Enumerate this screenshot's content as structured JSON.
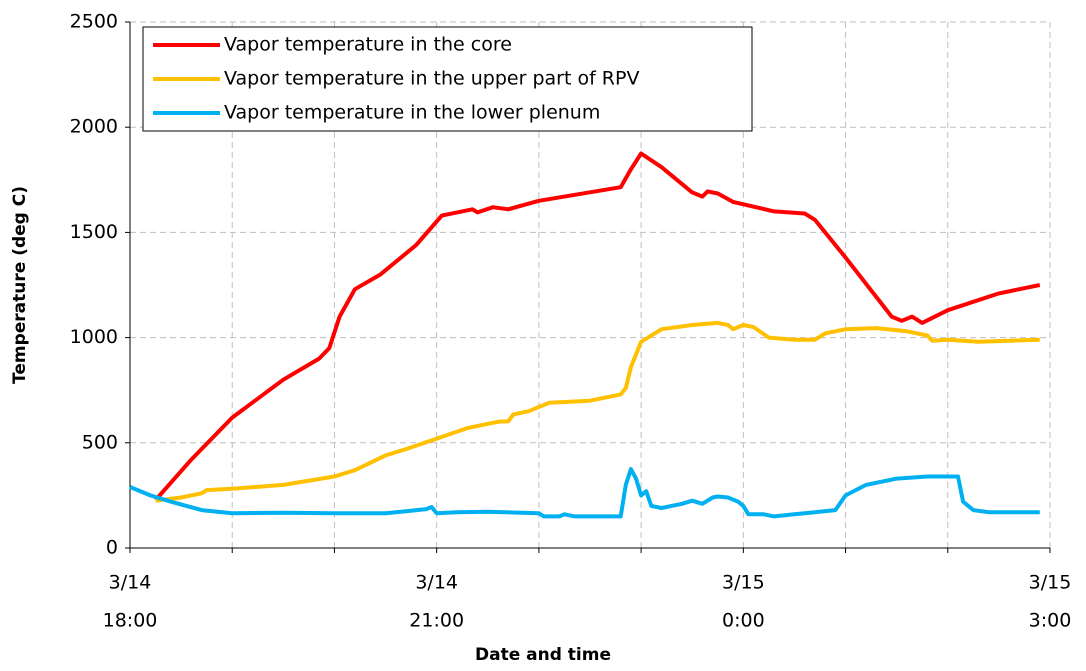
{
  "chart_data": {
    "type": "line",
    "x_label": "Date and time",
    "y_label": "Temperature (deg C)",
    "xlim": [
      0,
      9
    ],
    "xticks": [
      {
        "value": 0,
        "label": [
          "3/14",
          "18:00"
        ]
      },
      {
        "value": 3,
        "label": [
          "3/14",
          "21:00"
        ]
      },
      {
        "value": 6,
        "label": [
          "3/15",
          "0:00"
        ]
      },
      {
        "value": 9,
        "label": [
          "3/15",
          "3:00"
        ]
      }
    ],
    "xminor_ticks": [
      1,
      2,
      4,
      5,
      7,
      8
    ],
    "ylim": [
      0,
      2500
    ],
    "yticks": [
      0,
      500,
      1000,
      1500,
      2000,
      2500
    ],
    "grid": true,
    "legend": "upper left",
    "series": [
      {
        "name": "Vapor temperature in the core",
        "color": "#ff0000",
        "x": [
          0.25,
          0.6,
          1.0,
          1.5,
          1.85,
          1.95,
          2.05,
          2.2,
          2.45,
          2.8,
          3.05,
          3.35,
          3.4,
          3.55,
          3.7,
          4.0,
          4.8,
          4.9,
          5.0,
          5.2,
          5.5,
          5.6,
          5.65,
          5.75,
          5.9,
          6.3,
          6.6,
          6.7,
          7.0,
          7.45,
          7.55,
          7.65,
          7.75,
          8.0,
          8.5,
          8.9
        ],
        "values": [
          228,
          420,
          620,
          800,
          900,
          950,
          1100,
          1230,
          1300,
          1440,
          1580,
          1610,
          1595,
          1620,
          1610,
          1650,
          1715,
          1800,
          1875,
          1810,
          1690,
          1670,
          1695,
          1685,
          1645,
          1600,
          1590,
          1560,
          1380,
          1100,
          1080,
          1100,
          1070,
          1130,
          1210,
          1250
        ]
      },
      {
        "name": "Vapor temperature in the upper part of RPV",
        "color": "#ffc000",
        "x": [
          0.25,
          0.5,
          0.7,
          0.75,
          1.0,
          1.5,
          2.0,
          2.2,
          2.5,
          2.7,
          3.0,
          3.3,
          3.6,
          3.7,
          3.75,
          3.9,
          4.1,
          4.5,
          4.8,
          4.85,
          4.9,
          5.0,
          5.2,
          5.5,
          5.75,
          5.85,
          5.9,
          6.0,
          6.1,
          6.25,
          6.5,
          6.7,
          6.8,
          7.0,
          7.3,
          7.6,
          7.8,
          7.85,
          8.0,
          8.3,
          8.9
        ],
        "values": [
          225,
          240,
          260,
          275,
          282,
          300,
          340,
          370,
          440,
          470,
          520,
          570,
          600,
          602,
          635,
          650,
          690,
          700,
          730,
          760,
          860,
          980,
          1040,
          1060,
          1070,
          1060,
          1040,
          1060,
          1050,
          1000,
          990,
          990,
          1020,
          1040,
          1045,
          1030,
          1010,
          985,
          990,
          980,
          990
        ]
      },
      {
        "name": "Vapor temperature in the lower plenum",
        "color": "#00b0f0",
        "x": [
          0,
          0.2,
          0.4,
          0.7,
          1.0,
          1.5,
          2.0,
          2.5,
          2.7,
          2.9,
          2.95,
          3.0,
          3.2,
          3.5,
          4.0,
          4.05,
          4.2,
          4.25,
          4.35,
          4.8,
          4.85,
          4.9,
          4.95,
          5.0,
          5.05,
          5.1,
          5.2,
          5.4,
          5.5,
          5.6,
          5.7,
          5.75,
          5.85,
          5.95,
          6.0,
          6.05,
          6.2,
          6.3,
          6.5,
          6.7,
          6.9,
          7.0,
          7.2,
          7.5,
          7.8,
          8.1,
          8.15,
          8.25,
          8.4,
          8.9
        ],
        "values": [
          290,
          250,
          220,
          180,
          165,
          168,
          165,
          165,
          175,
          185,
          195,
          165,
          170,
          172,
          165,
          150,
          150,
          160,
          150,
          150,
          300,
          375,
          330,
          250,
          270,
          200,
          190,
          210,
          225,
          210,
          240,
          245,
          240,
          220,
          200,
          160,
          160,
          150,
          160,
          170,
          180,
          250,
          300,
          330,
          340,
          340,
          220,
          180,
          170,
          170
        ]
      }
    ]
  }
}
